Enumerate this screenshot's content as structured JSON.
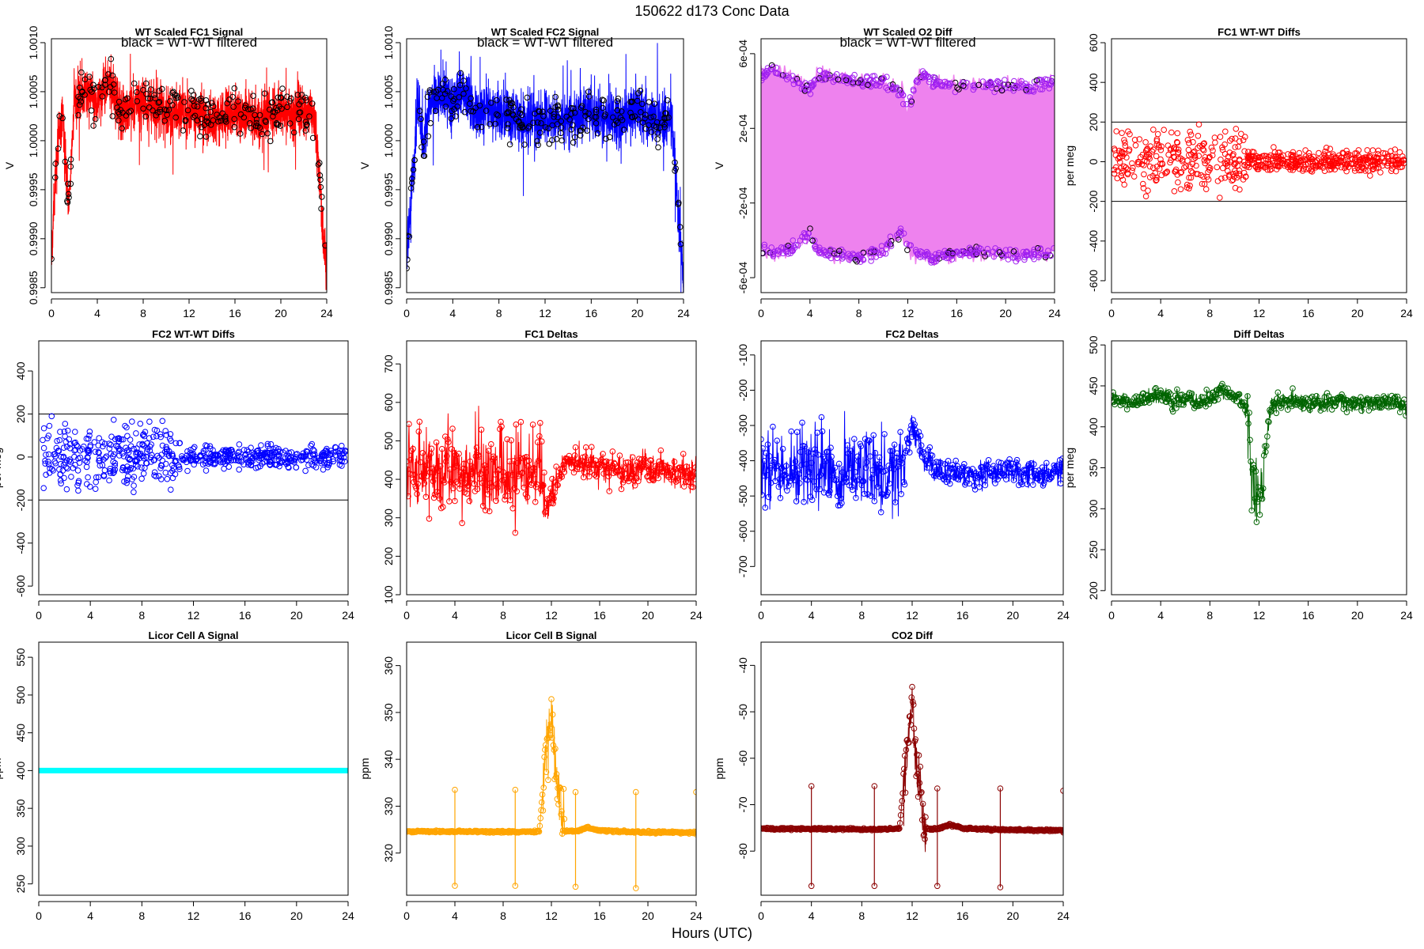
{
  "figure": {
    "title": "150622   d173   Conc Data",
    "xlabel": "Hours (UTC)"
  },
  "chart_data": [
    {
      "type": "line",
      "title": "WT Scaled FC1 Signal",
      "subtitle": "black = WT-WT filtered",
      "ylabel": "V",
      "color": "#ff0000",
      "overlay_color": "#000000",
      "xlim": [
        0,
        24
      ],
      "ylim": [
        0.99845,
        1.00104
      ],
      "yticks": [
        0.9985,
        0.999,
        0.9995,
        1.0,
        1.0005,
        1.001
      ],
      "ytick_labels": [
        "0.9985",
        "0.9990",
        "0.9995",
        "1.0000",
        "1.0005",
        "1.0010"
      ],
      "series_note": "dense noisy trace, settles ~1.0003 +/- 0.0003 from hour 2 to 23, drops at both ends",
      "x": [
        0,
        0.5,
        1,
        1.5,
        2,
        3,
        4,
        5,
        6,
        8,
        10,
        12,
        14,
        16,
        18,
        20,
        22,
        23,
        23.5,
        24
      ],
      "y": [
        0.9988,
        0.9999,
        1.0003,
        0.9993,
        1.0004,
        1.0005,
        1.0004,
        1.0006,
        1.0003,
        1.0004,
        1.0003,
        1.0003,
        1.0002,
        1.0003,
        1.0002,
        1.0003,
        1.0003,
        1.0002,
        0.9994,
        0.9986
      ]
    },
    {
      "type": "line",
      "title": "WT Scaled FC2 Signal",
      "subtitle": "black = WT-WT filtered",
      "ylabel": "V",
      "color": "#0000ff",
      "overlay_color": "#000000",
      "xlim": [
        0,
        24
      ],
      "ylim": [
        0.99845,
        1.00104
      ],
      "yticks": [
        0.9985,
        0.999,
        0.9995,
        1.0,
        1.0005,
        1.001
      ],
      "ytick_labels": [
        "0.9985",
        "0.9990",
        "0.9995",
        "1.0000",
        "1.0005",
        "1.0010"
      ],
      "x": [
        0,
        0.5,
        1,
        1.5,
        2,
        3,
        4,
        5,
        6,
        8,
        10,
        12,
        14,
        16,
        18,
        20,
        22,
        23,
        23.5,
        24
      ],
      "y": [
        0.9988,
        0.9996,
        1.0004,
        0.9999,
        1.0004,
        1.0005,
        1.0004,
        1.0005,
        1.0003,
        1.0003,
        1.0002,
        1.0002,
        1.0002,
        1.0003,
        1.0002,
        1.0003,
        1.0002,
        1.0002,
        0.9993,
        0.9986
      ]
    },
    {
      "type": "line",
      "title": "WT Scaled O2 Diff",
      "subtitle": "black = WT-WT filtered",
      "ylabel": "V",
      "color": "#ee82ee",
      "point_color": "#a020f0",
      "overlay_color": "#000000",
      "xlim": [
        0,
        24
      ],
      "ylim": [
        -0.00068,
        0.00068
      ],
      "yticks": [
        -0.0006,
        -0.0002,
        0.0002,
        0.0006
      ],
      "ytick_labels": [
        "-6e-04",
        "-2e-04",
        "2e-04",
        "6e-04"
      ],
      "x": [
        0,
        1,
        2,
        3,
        4,
        4.5,
        6,
        8,
        10,
        11.5,
        12,
        13,
        14,
        16,
        18,
        20,
        22,
        24
      ],
      "upper": [
        0.00048,
        0.00052,
        0.00048,
        0.00045,
        0.0004,
        0.00048,
        0.00047,
        0.00045,
        0.00046,
        0.00038,
        0.0003,
        0.0005,
        0.00044,
        0.00043,
        0.00043,
        0.00043,
        0.00042,
        0.00045
      ],
      "lower": [
        -0.00046,
        -0.00047,
        -0.00046,
        -0.00043,
        -0.00035,
        -0.00045,
        -0.00047,
        -0.0005,
        -0.00045,
        -0.00035,
        -0.00045,
        -0.00047,
        -0.0005,
        -0.00047,
        -0.00047,
        -0.00048,
        -0.00048,
        -0.00046
      ]
    },
    {
      "type": "scatter",
      "title": "FC1 WT-WT Diffs",
      "ylabel": "per meg",
      "color": "#ff0000",
      "xlim": [
        0,
        24
      ],
      "ylim": [
        -660,
        620
      ],
      "yticks": [
        -600,
        -400,
        -200,
        0,
        200,
        400,
        600
      ],
      "ytick_labels": [
        "-600",
        "-400",
        "-200",
        "0",
        "200",
        "400",
        "600"
      ],
      "hlines": [
        200,
        -200
      ],
      "spread_note": "scatter spread about +/-200 over hours 0-11, narrowing to about +/-70 after hour 11"
    },
    {
      "type": "scatter",
      "title": "FC2 WT-WT Diffs",
      "ylabel": "per meg",
      "color": "#0000ff",
      "xlim": [
        0,
        24
      ],
      "ylim": [
        -640,
        540
      ],
      "yticks": [
        -600,
        -400,
        -200,
        0,
        200,
        400
      ],
      "ytick_labels": [
        "-600",
        "-400",
        "-200",
        "0",
        "200",
        "400"
      ],
      "hlines": [
        200,
        -200
      ]
    },
    {
      "type": "line",
      "title": "FC1 Deltas",
      "ylabel": "",
      "color": "#ff0000",
      "xlim": [
        0,
        24
      ],
      "ylim": [
        100,
        760
      ],
      "yticks": [
        100,
        200,
        300,
        400,
        500,
        600,
        700
      ],
      "ytick_labels": [
        "100",
        "200",
        "300",
        "400",
        "500",
        "600",
        "700"
      ],
      "x": [
        0,
        2,
        4,
        6,
        8,
        10,
        11,
        11.5,
        12,
        13,
        14,
        16,
        18,
        20,
        22,
        24
      ],
      "y": [
        430,
        440,
        430,
        420,
        430,
        410,
        450,
        320,
        360,
        440,
        450,
        430,
        420,
        430,
        420,
        420
      ]
    },
    {
      "type": "line",
      "title": "FC2 Deltas",
      "ylabel": "",
      "color": "#0000ff",
      "xlim": [
        0,
        24
      ],
      "ylim": [
        -780,
        -60
      ],
      "yticks": [
        -700,
        -600,
        -500,
        -400,
        -300,
        -200,
        -100
      ],
      "ytick_labels": [
        "-700",
        "-600",
        "-500",
        "-400",
        "-300",
        "-200",
        "-100"
      ],
      "x": [
        0,
        2,
        4,
        6,
        8,
        10,
        11,
        12,
        13,
        14,
        16,
        18,
        20,
        22,
        24
      ],
      "y": [
        -420,
        -410,
        -420,
        -430,
        -420,
        -430,
        -420,
        -300,
        -400,
        -430,
        -440,
        -440,
        -430,
        -440,
        -430
      ]
    },
    {
      "type": "line",
      "title": "Diff Deltas",
      "ylabel": "per meg",
      "color": "#006400",
      "xlim": [
        0,
        24
      ],
      "ylim": [
        195,
        505
      ],
      "yticks": [
        200,
        250,
        300,
        350,
        400,
        450,
        500
      ],
      "ytick_labels": [
        "200",
        "250",
        "300",
        "350",
        "400",
        "450",
        "500"
      ],
      "x": [
        0,
        1,
        2,
        3,
        4,
        5,
        6,
        7,
        8,
        9,
        10,
        10.5,
        11,
        11.5,
        12,
        12.5,
        13,
        14,
        15,
        16,
        17,
        18,
        19,
        20,
        21,
        22,
        23,
        24
      ],
      "y": [
        435,
        432,
        430,
        436,
        440,
        432,
        435,
        430,
        436,
        445,
        432,
        436,
        420,
        330,
        300,
        370,
        428,
        430,
        432,
        430,
        428,
        430,
        432,
        428,
        430,
        428,
        430,
        420
      ]
    },
    {
      "type": "line",
      "title": "Licor Cell A Signal",
      "ylabel": "ppm",
      "color": "#00ffff",
      "xlim": [
        0,
        24
      ],
      "ylim": [
        235,
        570
      ],
      "yticks": [
        250,
        300,
        350,
        400,
        450,
        500,
        550
      ],
      "ytick_labels": [
        "250",
        "300",
        "350",
        "400",
        "450",
        "500",
        "550"
      ],
      "x": [
        0,
        24
      ],
      "y": [
        400,
        400
      ]
    },
    {
      "type": "line",
      "title": "Licor Cell B Signal",
      "ylabel": "ppm",
      "color": "#ffa500",
      "xlim": [
        0,
        24
      ],
      "ylim": [
        311,
        365
      ],
      "yticks": [
        320,
        330,
        340,
        350,
        360
      ],
      "ytick_labels": [
        "320",
        "330",
        "340",
        "350",
        "360"
      ],
      "x": [
        0,
        4,
        9,
        11,
        11.5,
        12,
        12.5,
        13,
        14,
        15,
        16,
        19,
        22,
        24
      ],
      "y": [
        324.6,
        324.6,
        324.5,
        324.6,
        340,
        350,
        335,
        324.7,
        324.6,
        325.5,
        324.8,
        324.5,
        324.4,
        324.4
      ],
      "spikes": [
        {
          "x": 4.0,
          "high": 333.5,
          "low": 313
        },
        {
          "x": 9.0,
          "high": 333.5,
          "low": 313
        },
        {
          "x": 14.0,
          "high": 333,
          "low": 312.8
        },
        {
          "x": 19.0,
          "high": 333,
          "low": 312.5
        },
        {
          "x": 24.0,
          "high": 333,
          "low": 324
        }
      ]
    },
    {
      "type": "line",
      "title": "CO2 Diff",
      "ylabel": "ppm",
      "color": "#8b0000",
      "xlim": [
        0,
        24
      ],
      "ylim": [
        -89.5,
        -35
      ],
      "yticks": [
        -80,
        -70,
        -60,
        -50,
        -40
      ],
      "ytick_labels": [
        "-80",
        "-70",
        "-60",
        "-50",
        "-40"
      ],
      "x": [
        0,
        4,
        9,
        11,
        11.5,
        12,
        12.5,
        13,
        14,
        15,
        16,
        19,
        22,
        24
      ],
      "y": [
        -75.2,
        -75.2,
        -75.3,
        -75.2,
        -60,
        -50,
        -65,
        -75.1,
        -75.2,
        -74.3,
        -75.1,
        -75.4,
        -75.5,
        -75.5
      ],
      "spikes": [
        {
          "x": 4.0,
          "high": -66,
          "low": -87.5
        },
        {
          "x": 9.0,
          "high": -66,
          "low": -87.5
        },
        {
          "x": 14.0,
          "high": -66.5,
          "low": -87.5
        },
        {
          "x": 19.0,
          "high": -66.5,
          "low": -87.8
        },
        {
          "x": 24.0,
          "high": -67,
          "low": -76
        }
      ]
    }
  ]
}
